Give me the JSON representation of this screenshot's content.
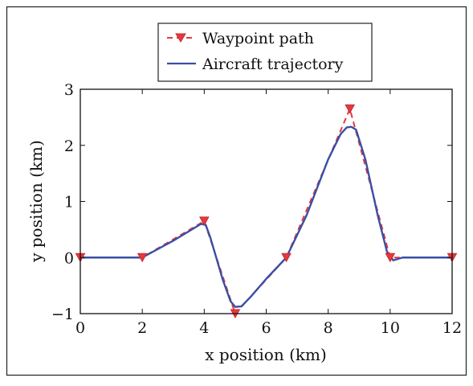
{
  "chart_data": {
    "type": "line",
    "xlabel": "x position (km)",
    "ylabel": "y position (km)",
    "xlim": [
      0,
      12
    ],
    "ylim": [
      -1,
      3
    ],
    "x_ticks": [
      0,
      2,
      4,
      6,
      8,
      10,
      12
    ],
    "y_ticks": [
      -1,
      0,
      1,
      2,
      3
    ],
    "x_tick_labels": [
      "0",
      "2",
      "4",
      "6",
      "8",
      "10",
      "12"
    ],
    "y_tick_labels": [
      "−1",
      "0",
      "1",
      "2",
      "3"
    ],
    "grid": false,
    "legend_position": "top-center",
    "series": [
      {
        "name": "Waypoint path",
        "color": "#e8383d",
        "style": "dashed",
        "marker": "down-triangle",
        "x": [
          0,
          2,
          4,
          5,
          6.65,
          8.7,
          10,
          12
        ],
        "y": [
          0,
          0,
          0.65,
          -1.0,
          0,
          2.65,
          0,
          0
        ]
      },
      {
        "name": "Aircraft trajectory",
        "color": "#3a4fa3",
        "style": "solid",
        "x": [
          0,
          2,
          3.0,
          3.6,
          3.9,
          4.05,
          4.2,
          4.6,
          4.85,
          5.0,
          5.2,
          5.5,
          6.0,
          6.65,
          7.3,
          8.0,
          8.4,
          8.6,
          8.75,
          8.9,
          9.2,
          9.6,
          9.9,
          10.1,
          10.4,
          11,
          12
        ],
        "y": [
          0,
          0,
          0.3,
          0.5,
          0.6,
          0.58,
          0.35,
          -0.4,
          -0.78,
          -0.88,
          -0.87,
          -0.7,
          -0.38,
          0,
          0.75,
          1.75,
          2.2,
          2.32,
          2.33,
          2.28,
          1.75,
          0.75,
          0.1,
          -0.05,
          0,
          0,
          0
        ]
      }
    ]
  }
}
